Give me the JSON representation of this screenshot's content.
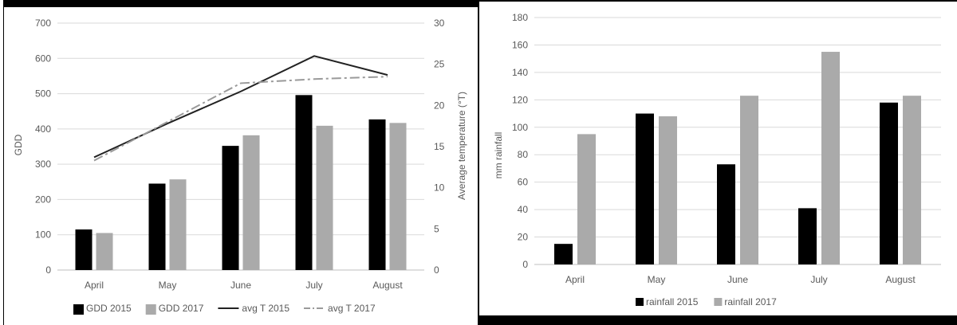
{
  "chart_data": [
    {
      "type": "bar",
      "categories": [
        "April",
        "May",
        "June",
        "July",
        "August"
      ],
      "series": [
        {
          "name": "GDD 2015",
          "kind": "bar",
          "axis": "left",
          "color": "#000000",
          "values": [
            115,
            245,
            352,
            496,
            427
          ]
        },
        {
          "name": "GDD 2017",
          "kind": "bar",
          "axis": "left",
          "color": "#aaaaaa",
          "values": [
            105,
            257,
            382,
            409,
            417
          ]
        },
        {
          "name": "avg T 2015",
          "kind": "line",
          "axis": "right",
          "style": "solid",
          "color": "#222222",
          "values": [
            13.7,
            17.8,
            21.7,
            26,
            23.7
          ]
        },
        {
          "name": "avg T 2017",
          "kind": "line",
          "axis": "right",
          "style": "dashdot",
          "color": "#9a9a9a",
          "values": [
            13.3,
            18,
            22.7,
            23.2,
            23.5
          ]
        }
      ],
      "ylabel": "GDD",
      "y2label": "Average temperature (°T)",
      "ylim": [
        0,
        700
      ],
      "yticks": [
        "0",
        "100",
        "200",
        "300",
        "400",
        "500",
        "600",
        "700"
      ],
      "y2lim": [
        0,
        30
      ],
      "y2ticks": [
        "0",
        "5",
        "10",
        "15",
        "20",
        "25",
        "30"
      ],
      "grid": true,
      "legend": "bottom"
    },
    {
      "type": "bar",
      "categories": [
        "April",
        "May",
        "June",
        "July",
        "August"
      ],
      "series": [
        {
          "name": "rainfall 2015",
          "color": "#000000",
          "values": [
            15,
            110,
            73,
            41,
            118
          ]
        },
        {
          "name": "rainfall 2017",
          "color": "#aaaaaa",
          "values": [
            95,
            108,
            123,
            155,
            123
          ]
        }
      ],
      "ylabel": "mm rainfall",
      "ylim": [
        0,
        180
      ],
      "yticks": [
        "0",
        "20",
        "40",
        "60",
        "80",
        "100",
        "120",
        "140",
        "160",
        "180"
      ],
      "grid": true,
      "legend": "bottom"
    }
  ]
}
